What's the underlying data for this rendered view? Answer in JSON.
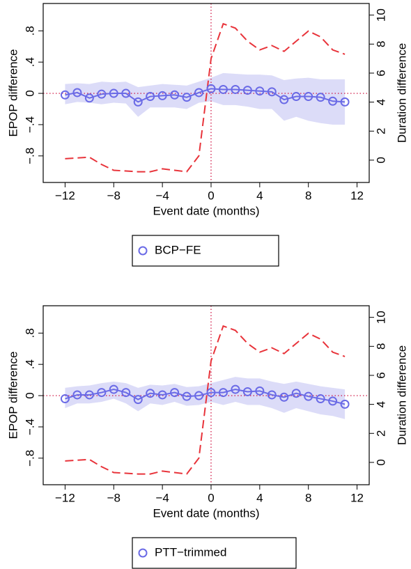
{
  "chart_data": [
    {
      "type": "line",
      "x": [
        -12,
        -11,
        -10,
        -9,
        -8,
        -7,
        -6,
        -5,
        -4,
        -3,
        -2,
        -1,
        0,
        1,
        2,
        3,
        4,
        5,
        6,
        7,
        8,
        9,
        10,
        11
      ],
      "series": [
        {
          "name": "BCP−FE",
          "color": "#6a6ae6",
          "values": [
            -0.02,
            0.01,
            -0.06,
            -0.01,
            0,
            0,
            -0.11,
            -0.04,
            -0.03,
            -0.02,
            -0.05,
            0.01,
            0.06,
            0.05,
            0.05,
            0.04,
            0.03,
            0.02,
            -0.08,
            -0.04,
            -0.04,
            -0.05,
            -0.1,
            -0.11
          ]
        }
      ],
      "ci_upper": [
        0.12,
        0.13,
        0.12,
        0.15,
        0.14,
        0.15,
        0.08,
        0.1,
        0.12,
        0.11,
        0.1,
        0.15,
        0.2,
        0.26,
        0.25,
        0.24,
        0.24,
        0.23,
        0.17,
        0.19,
        0.2,
        0.18,
        0.18,
        0.18
      ],
      "ci_lower": [
        -0.14,
        -0.11,
        -0.12,
        -0.14,
        -0.12,
        -0.13,
        -0.3,
        -0.18,
        -0.18,
        -0.18,
        -0.2,
        -0.12,
        -0.1,
        -0.15,
        -0.15,
        -0.17,
        -0.2,
        -0.2,
        -0.35,
        -0.3,
        -0.35,
        -0.38,
        -0.4,
        -0.4
      ],
      "band_color": "#dcdcf8",
      "y2_values": [
        0.1,
        0.15,
        0.2,
        -0.3,
        -0.7,
        -0.75,
        -0.8,
        -0.8,
        -0.6,
        -0.7,
        -0.8,
        0.3,
        7,
        9.4,
        9.1,
        8.2,
        7.6,
        7.9,
        7.5,
        8.2,
        8.9,
        8.5,
        7.6,
        7.3
      ],
      "y2_color": "#e8333a",
      "xlabel": "Event date (months)",
      "ylabel": "EPOP difference",
      "y2label": "Duration difference",
      "xlim": [
        -13.8,
        13
      ],
      "ylim": [
        -1.14,
        1.15
      ],
      "y2lim": [
        -1.54,
        10.8
      ],
      "xticks": [
        {
          "value": -12,
          "label": "−12"
        },
        {
          "value": -8,
          "label": "−8"
        },
        {
          "value": -4,
          "label": "−4"
        },
        0,
        4,
        8,
        12
      ],
      "yticks": [
        {
          "value": -0.8,
          "label": "−.8"
        },
        {
          "value": -0.4,
          "label": "−.4"
        },
        0,
        {
          "value": 0.4,
          "label": ".4"
        },
        {
          "value": 0.8,
          "label": ".8"
        }
      ],
      "y2ticks": [
        0,
        2,
        4,
        6,
        8,
        10
      ]
    },
    {
      "type": "line",
      "x": [
        -12,
        -11,
        -10,
        -9,
        -8,
        -7,
        -6,
        -5,
        -4,
        -3,
        -2,
        -1,
        0,
        1,
        2,
        3,
        4,
        5,
        6,
        7,
        8,
        9,
        10,
        11
      ],
      "series": [
        {
          "name": "PTT−trimmed",
          "color": "#6a6ae6",
          "values": [
            -0.04,
            0.01,
            0.01,
            0.04,
            0.08,
            0.04,
            -0.05,
            0.03,
            0.01,
            0.04,
            -0.01,
            0,
            0.04,
            0.04,
            0.08,
            0.05,
            0.06,
            0.01,
            -0.02,
            0.03,
            -0.01,
            -0.04,
            -0.07,
            -0.11
          ]
        }
      ],
      "ci_upper": [
        0.1,
        0.12,
        0.13,
        0.16,
        0.18,
        0.16,
        0.1,
        0.14,
        0.13,
        0.15,
        0.11,
        0.12,
        0.16,
        0.2,
        0.24,
        0.22,
        0.22,
        0.18,
        0.15,
        0.18,
        0.15,
        0.12,
        0.1,
        0.08
      ],
      "ci_lower": [
        -0.16,
        -0.1,
        -0.1,
        -0.08,
        -0.04,
        -0.1,
        -0.2,
        -0.1,
        -0.12,
        -0.08,
        -0.13,
        -0.12,
        -0.08,
        -0.12,
        -0.08,
        -0.12,
        -0.12,
        -0.16,
        -0.22,
        -0.16,
        -0.2,
        -0.24,
        -0.26,
        -0.3
      ],
      "band_color": "#dcdcf8",
      "y2_values": [
        0.1,
        0.15,
        0.2,
        -0.3,
        -0.7,
        -0.75,
        -0.8,
        -0.8,
        -0.6,
        -0.7,
        -0.8,
        0.3,
        7,
        9.4,
        9.1,
        8.2,
        7.6,
        7.9,
        7.5,
        8.2,
        8.9,
        8.5,
        7.6,
        7.3
      ],
      "y2_color": "#e8333a",
      "xlabel": "Event date (months)",
      "ylabel": "EPOP difference",
      "y2label": "Duration difference",
      "xlim": [
        -13.8,
        13
      ],
      "ylim": [
        -1.14,
        1.15
      ],
      "y2lim": [
        -1.54,
        10.8
      ],
      "xticks": [
        {
          "value": -12,
          "label": "−12"
        },
        {
          "value": -8,
          "label": "−8"
        },
        {
          "value": -4,
          "label": "−4"
        },
        0,
        4,
        8,
        12
      ],
      "yticks": [
        {
          "value": -0.8,
          "label": "−.8"
        },
        {
          "value": -0.4,
          "label": "−.4"
        },
        0,
        {
          "value": 0.4,
          "label": ".4"
        },
        {
          "value": 0.8,
          "label": ".8"
        }
      ],
      "y2ticks": [
        0,
        2,
        4,
        6,
        8,
        10
      ]
    }
  ]
}
